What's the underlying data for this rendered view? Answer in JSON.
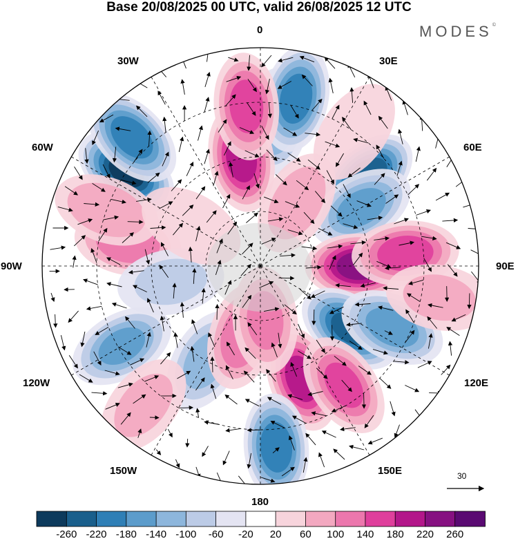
{
  "title": "Base 20/08/2025 00 UTC, valid 26/08/2025 12 UTC",
  "brand": "MODES",
  "brand_mark": "©",
  "longitude_labels": {
    "n0": "0",
    "e30": "30E",
    "e60": "60E",
    "e90": "90E",
    "e120": "120E",
    "e150": "150E",
    "s180": "180",
    "w150": "150W",
    "w120": "120W",
    "w90": "90W",
    "w60": "60W",
    "w30": "30W"
  },
  "reference_vector": {
    "value": "30"
  },
  "colorbar": {
    "ticks": [
      "-260",
      "-220",
      "-180",
      "-140",
      "-100",
      "-60",
      "-20",
      "20",
      "60",
      "100",
      "140",
      "180",
      "220",
      "260"
    ],
    "colors": [
      "#0d3a5c",
      "#1a5f8c",
      "#2f7fb6",
      "#5c9ccb",
      "#8db6dc",
      "#bccbe6",
      "#e4e4f2",
      "#ffffff",
      "#f7d4dc",
      "#f3a8c0",
      "#ec77ad",
      "#df3f9c",
      "#b3178a",
      "#861181",
      "#5a0a72"
    ]
  },
  "anomalies": [
    {
      "lon": 6,
      "colat": 40,
      "value": -130
    },
    {
      "lon": 12,
      "colat": 47,
      "value": -200
    },
    {
      "lon": -55,
      "colat": 45,
      "value": -260
    },
    {
      "lon": -45,
      "colat": 50,
      "value": -200
    },
    {
      "lon": -10,
      "colat": 30,
      "value": 190
    },
    {
      "lon": -5,
      "colat": 44,
      "value": 150
    },
    {
      "lon": 50,
      "colat": 38,
      "value": -250
    },
    {
      "lon": 60,
      "colat": 32,
      "value": -150
    },
    {
      "lon": 90,
      "colat": 27,
      "value": 230
    },
    {
      "lon": 85,
      "colat": 40,
      "value": 160
    },
    {
      "lon": 125,
      "colat": 30,
      "value": -220
    },
    {
      "lon": 115,
      "colat": 40,
      "value": -160
    },
    {
      "lon": 160,
      "colat": 33,
      "value": 190
    },
    {
      "lon": 145,
      "colat": 40,
      "value": 140
    },
    {
      "lon": 175,
      "colat": 50,
      "value": -200
    },
    {
      "lon": -80,
      "colat": 37,
      "value": 120
    },
    {
      "lon": -70,
      "colat": 45,
      "value": 90
    },
    {
      "lon": -150,
      "colat": 30,
      "value": -110
    },
    {
      "lon": -120,
      "colat": 44,
      "value": -140
    },
    {
      "lon": -100,
      "colat": 25,
      "value": -60
    },
    {
      "lon": -165,
      "colat": 20,
      "value": 120
    },
    {
      "lon": 175,
      "colat": 15,
      "value": 100
    },
    {
      "lon": 30,
      "colat": 20,
      "value": 80
    },
    {
      "lon": 35,
      "colat": 45,
      "value": 50
    },
    {
      "lon": -60,
      "colat": 22,
      "value": 40
    },
    {
      "lon": -140,
      "colat": 50,
      "value": 60
    },
    {
      "lon": 100,
      "colat": 50,
      "value": 60
    }
  ]
}
